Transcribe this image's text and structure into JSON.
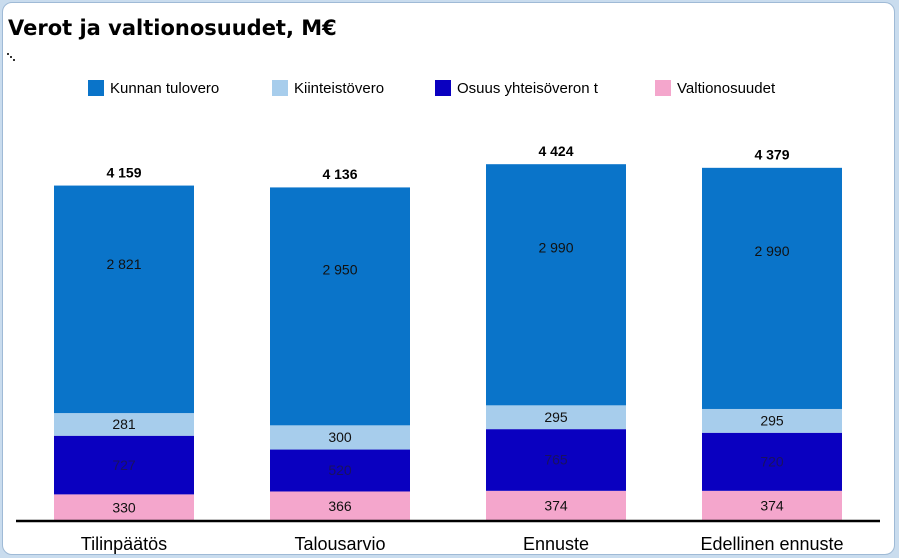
{
  "chart_data": {
    "type": "stacked_bar",
    "title": "Verot ja valtionosuudet, M€",
    "categories": [
      "Tilinpäätös",
      "Talousarvio",
      "Ennuste",
      "Edellinen ennuste"
    ],
    "series": [
      {
        "name": "Kunnan tulovero",
        "color": "#0a74c9",
        "values": [
          2821,
          2950,
          2990,
          2990
        ],
        "value_labels": [
          "2 821",
          "2 950",
          "2 990",
          "2 990"
        ]
      },
      {
        "name": "Kiinteistövero",
        "color": "#a7cdec",
        "values": [
          281,
          300,
          295,
          295
        ],
        "value_labels": [
          "281",
          "300",
          "295",
          "295"
        ]
      },
      {
        "name": "Osuus yhteisöveron t",
        "color": "#0a00c0",
        "values": [
          727,
          520,
          765,
          720
        ],
        "value_labels": [
          "727",
          "520",
          "765",
          "720"
        ]
      },
      {
        "name": "Valtionosuudet",
        "color": "#f4a6cc",
        "values": [
          330,
          366,
          374,
          374
        ],
        "value_labels": [
          "330",
          "366",
          "374",
          "374"
        ]
      }
    ],
    "totals": {
      "values": [
        4159,
        4136,
        4424,
        4379
      ],
      "value_labels": [
        "4 159",
        "4 136",
        "4 424",
        "4 379"
      ]
    },
    "ylim": [
      0,
      4600
    ],
    "legend": "top"
  }
}
